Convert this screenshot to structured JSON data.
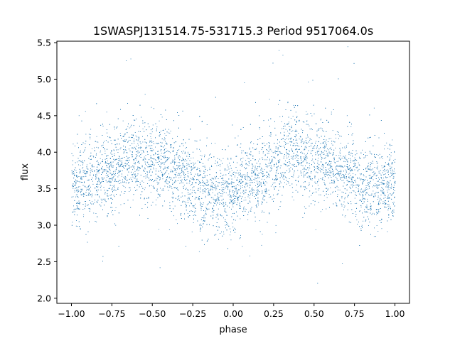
{
  "chart_data": {
    "type": "scatter",
    "title": "1SWASPJ131514.75-531715.3 Period 9517064.0s",
    "xlabel": "phase",
    "ylabel": "flux",
    "xlim": [
      -1.09,
      1.09
    ],
    "ylim": [
      1.93,
      5.52
    ],
    "xticks": [
      -1.0,
      -0.75,
      -0.5,
      -0.25,
      0.0,
      0.25,
      0.5,
      0.75,
      1.0
    ],
    "xtick_labels": [
      "−1.00",
      "−0.75",
      "−0.50",
      "−0.25",
      "0.00",
      "0.25",
      "0.50",
      "0.75",
      "1.00"
    ],
    "yticks": [
      2.0,
      2.5,
      3.0,
      3.5,
      4.0,
      4.5,
      5.0,
      5.5
    ],
    "ytick_labels": [
      "2.0",
      "2.5",
      "3.0",
      "3.5",
      "4.0",
      "4.5",
      "5.0",
      "5.5"
    ],
    "grid": false,
    "legend": "none",
    "marker_color": "#1f77b4",
    "x_range": [
      -1.0,
      1.0
    ],
    "mean_flux_profile": {
      "phase": [
        -1.0,
        -0.95,
        -0.9,
        -0.85,
        -0.8,
        -0.75,
        -0.7,
        -0.65,
        -0.6,
        -0.55,
        -0.5,
        -0.45,
        -0.4,
        -0.35,
        -0.3,
        -0.25,
        -0.2,
        -0.15,
        -0.1,
        -0.05,
        0.0,
        0.05,
        0.1,
        0.15,
        0.2,
        0.25,
        0.3,
        0.35,
        0.4,
        0.45,
        0.5,
        0.55,
        0.6,
        0.65,
        0.7,
        0.75,
        0.8,
        0.85,
        0.9,
        0.95,
        1.0
      ],
      "flux": [
        3.55,
        3.6,
        3.6,
        3.65,
        3.7,
        3.75,
        3.8,
        3.95,
        3.95,
        3.9,
        3.85,
        3.85,
        3.8,
        3.75,
        3.65,
        3.6,
        3.5,
        3.45,
        3.4,
        3.45,
        3.5,
        3.55,
        3.6,
        3.65,
        3.7,
        3.8,
        3.95,
        4.05,
        3.95,
        3.9,
        3.9,
        3.95,
        3.85,
        3.75,
        3.7,
        3.65,
        3.55,
        3.5,
        3.5,
        3.55,
        3.55
      ]
    },
    "flux_scatter": 0.28
  }
}
